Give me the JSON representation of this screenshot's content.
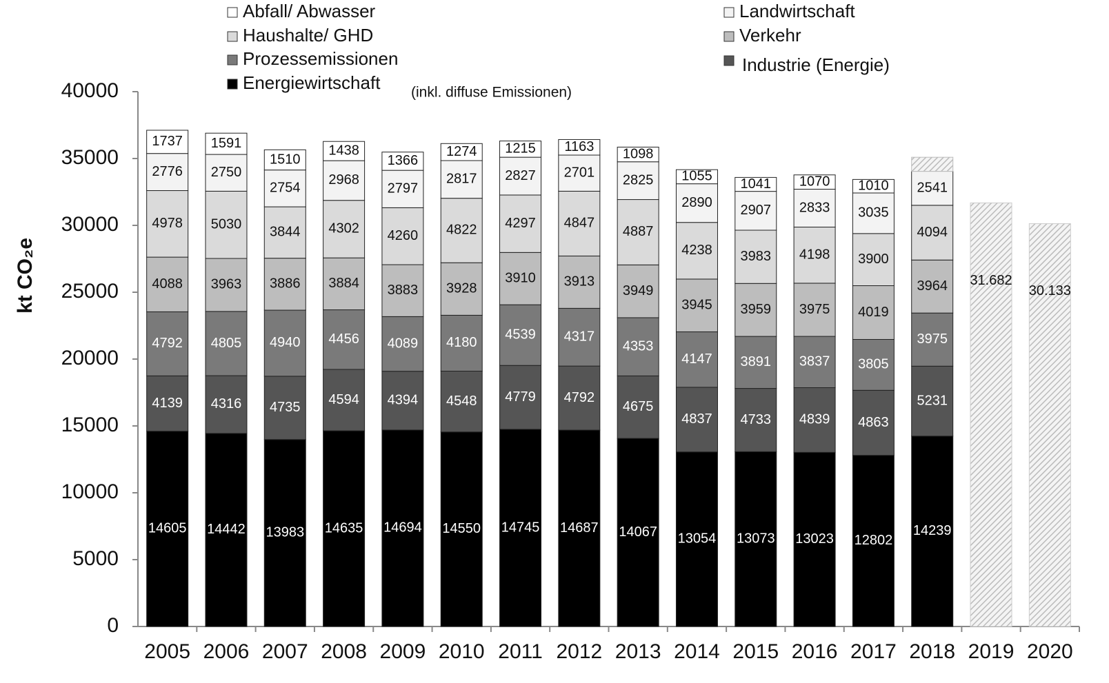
{
  "chart_data": {
    "type": "stacked_bar",
    "y_label": "kt CO₂e",
    "annotation": "(inkl. diffuse Emissionen)",
    "categories": [
      "2005",
      "2006",
      "2007",
      "2008",
      "2009",
      "2010",
      "2011",
      "2012",
      "2013",
      "2014",
      "2015",
      "2016",
      "2017",
      "2018",
      "2019",
      "2020"
    ],
    "ylim": [
      0,
      40000
    ],
    "yticks": [
      0,
      5000,
      10000,
      15000,
      20000,
      25000,
      30000,
      35000,
      40000
    ],
    "series": [
      {
        "name": "Energiewirtschaft",
        "color": "#000000",
        "values": [
          14605,
          14442,
          13983,
          14635,
          14694,
          14550,
          14745,
          14687,
          14067,
          13054,
          13073,
          13023,
          12802,
          14239,
          null,
          null
        ]
      },
      {
        "name": "Industrie (Energie)",
        "color": "#555555",
        "values": [
          4139,
          4316,
          4735,
          4594,
          4394,
          4548,
          4779,
          4792,
          4675,
          4837,
          4733,
          4839,
          4863,
          5231,
          null,
          null
        ]
      },
      {
        "name": "Prozessemissionen",
        "color": "#7a7a7a",
        "values": [
          4792,
          4805,
          4940,
          4456,
          4089,
          4180,
          4539,
          4317,
          4353,
          4147,
          3891,
          3837,
          3805,
          3975,
          null,
          null
        ]
      },
      {
        "name": "Verkehr",
        "color": "#bdbdbd",
        "values": [
          4088,
          3963,
          3886,
          3884,
          3883,
          3928,
          3910,
          3913,
          3949,
          3945,
          3959,
          3975,
          4019,
          3964,
          null,
          null
        ]
      },
      {
        "name": "Haushalte/ GHD",
        "color": "#dadada",
        "values": [
          4978,
          5030,
          3844,
          4302,
          4260,
          4822,
          4297,
          4847,
          4887,
          4238,
          3983,
          4198,
          3900,
          4094,
          null,
          null
        ]
      },
      {
        "name": "Landwirtschaft",
        "color": "#f3f3f3",
        "values": [
          2776,
          2750,
          2754,
          2968,
          2797,
          2817,
          2827,
          2701,
          2825,
          2890,
          2907,
          2833,
          3035,
          2541,
          null,
          null
        ]
      },
      {
        "name": "Abfall/ Abwasser",
        "color": "#ffffff",
        "values": [
          1737,
          1591,
          1510,
          1438,
          1366,
          1274,
          1215,
          1163,
          1098,
          1055,
          1041,
          1070,
          1010,
          1050,
          null,
          null
        ],
        "value_labels": [
          "1737",
          "1591",
          "1510",
          "1438",
          "1366",
          "1274",
          "1215",
          "1163",
          "1098",
          "1055",
          "1041",
          "1070",
          "1010",
          null,
          null,
          null
        ]
      }
    ],
    "projection": {
      "values": [
        null,
        null,
        null,
        null,
        null,
        null,
        null,
        null,
        null,
        null,
        null,
        null,
        null,
        null,
        31682,
        30133
      ],
      "value_labels": [
        null,
        null,
        null,
        null,
        null,
        null,
        null,
        null,
        null,
        null,
        null,
        null,
        null,
        null,
        "31.682",
        "30.133"
      ]
    }
  }
}
